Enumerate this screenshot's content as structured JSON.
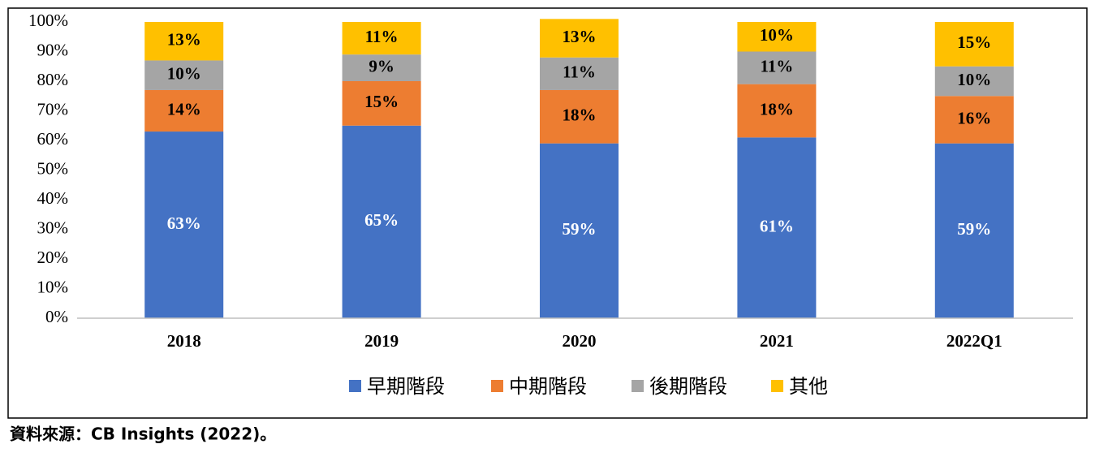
{
  "chart_data": {
    "type": "stacked_bar",
    "categories": [
      "2018",
      "2019",
      "2020",
      "2021",
      "2022Q1"
    ],
    "series": [
      {
        "name": "早期階段",
        "color": "#4472c4",
        "values": [
          63,
          65,
          59,
          61,
          59
        ],
        "value_labels": [
          "63%",
          "65%",
          "59%",
          "61%",
          "59%"
        ]
      },
      {
        "name": "中期階段",
        "color": "#ed7d31",
        "values": [
          14,
          15,
          18,
          18,
          16
        ],
        "value_labels": [
          "14%",
          "15%",
          "18%",
          "18%",
          "16%"
        ]
      },
      {
        "name": "後期階段",
        "color": "#a5a5a5",
        "values": [
          10,
          9,
          11,
          11,
          10
        ],
        "value_labels": [
          "10%",
          "9%",
          "11%",
          "11%",
          "10%"
        ]
      },
      {
        "name": "其他",
        "color": "#ffc000",
        "values": [
          13,
          11,
          13,
          10,
          15
        ],
        "value_labels": [
          "13%",
          "11%",
          "13%",
          "10%",
          "15%"
        ]
      }
    ],
    "ylim": [
      0,
      100
    ],
    "yticks": [
      {
        "value": 0,
        "label": "0%"
      },
      {
        "value": 10,
        "label": "10%"
      },
      {
        "value": 20,
        "label": "20%"
      },
      {
        "value": 30,
        "label": "30%"
      },
      {
        "value": 40,
        "label": "40%"
      },
      {
        "value": 50,
        "label": "50%"
      },
      {
        "value": 60,
        "label": "60%"
      },
      {
        "value": 70,
        "label": "70%"
      },
      {
        "value": 80,
        "label": "80%"
      },
      {
        "value": 90,
        "label": "90%"
      },
      {
        "value": 100,
        "label": "100%"
      }
    ],
    "grid": false,
    "legend": "bottom",
    "source": "資料來源：CB Insights (2022)。"
  }
}
